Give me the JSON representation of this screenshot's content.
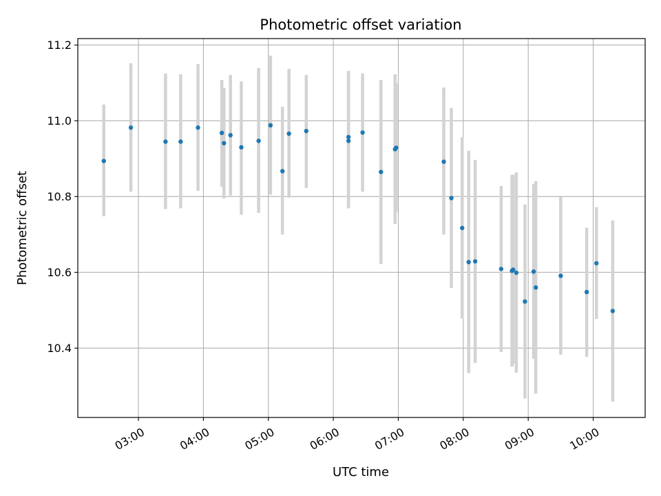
{
  "chart_data": {
    "type": "scatter",
    "title": "Photometric offset variation",
    "xlabel": "UTC time",
    "ylabel": "Photometric offset",
    "x_axis": {
      "kind": "time",
      "range": [
        "02:04",
        "10:48"
      ],
      "ticks": [
        "03:00",
        "04:00",
        "05:00",
        "06:00",
        "07:00",
        "08:00",
        "09:00",
        "10:00"
      ]
    },
    "y_axis": {
      "range": [
        10.217,
        11.217
      ],
      "ticks": [
        "10.4",
        "10.6",
        "10.8",
        "11.0",
        "11.2"
      ]
    },
    "grid": true,
    "colors": {
      "marker": "#1f77b4",
      "errorbar": "#d3d3d3",
      "grid": "#b0b0b0"
    },
    "points": [
      {
        "time": "02:28",
        "offset": 10.894,
        "low": 10.748,
        "high": 11.043
      },
      {
        "time": "02:53",
        "offset": 10.982,
        "low": 10.813,
        "high": 11.152
      },
      {
        "time": "03:25",
        "offset": 10.945,
        "low": 10.767,
        "high": 11.125
      },
      {
        "time": "03:39",
        "offset": 10.945,
        "low": 10.769,
        "high": 11.123
      },
      {
        "time": "03:55",
        "offset": 10.982,
        "low": 10.815,
        "high": 11.15
      },
      {
        "time": "04:17",
        "offset": 10.968,
        "low": 10.826,
        "high": 11.108
      },
      {
        "time": "04:19",
        "offset": 10.941,
        "low": 10.795,
        "high": 11.087
      },
      {
        "time": "04:25",
        "offset": 10.962,
        "low": 10.803,
        "high": 11.121
      },
      {
        "time": "04:35",
        "offset": 10.93,
        "low": 10.752,
        "high": 11.104
      },
      {
        "time": "04:51",
        "offset": 10.947,
        "low": 10.757,
        "high": 11.139
      },
      {
        "time": "05:02",
        "offset": 10.988,
        "low": 10.805,
        "high": 11.172
      },
      {
        "time": "05:13",
        "offset": 10.867,
        "low": 10.7,
        "high": 11.037
      },
      {
        "time": "05:19",
        "offset": 10.966,
        "low": 10.797,
        "high": 11.137
      },
      {
        "time": "05:35",
        "offset": 10.973,
        "low": 10.823,
        "high": 11.121
      },
      {
        "time": "06:14",
        "offset": 10.957,
        "low": 10.769,
        "high": 11.132
      },
      {
        "time": "06:14",
        "offset": 10.947,
        "low": 10.769,
        "high": 11.13
      },
      {
        "time": "06:27",
        "offset": 10.969,
        "low": 10.813,
        "high": 11.125
      },
      {
        "time": "06:44",
        "offset": 10.865,
        "low": 10.622,
        "high": 11.108
      },
      {
        "time": "06:57",
        "offset": 10.925,
        "low": 10.728,
        "high": 11.123
      },
      {
        "time": "06:58",
        "offset": 10.929,
        "low": 10.76,
        "high": 11.099
      },
      {
        "time": "07:42",
        "offset": 10.892,
        "low": 10.7,
        "high": 11.088
      },
      {
        "time": "07:49",
        "offset": 10.796,
        "low": 10.559,
        "high": 11.034
      },
      {
        "time": "07:59",
        "offset": 10.717,
        "low": 10.478,
        "high": 10.957
      },
      {
        "time": "08:05",
        "offset": 10.627,
        "low": 10.334,
        "high": 10.921
      },
      {
        "time": "08:11",
        "offset": 10.629,
        "low": 10.361,
        "high": 10.897
      },
      {
        "time": "08:35",
        "offset": 10.609,
        "low": 10.39,
        "high": 10.828
      },
      {
        "time": "08:45",
        "offset": 10.604,
        "low": 10.351,
        "high": 10.857
      },
      {
        "time": "08:46",
        "offset": 10.607,
        "low": 10.358,
        "high": 10.858
      },
      {
        "time": "08:49",
        "offset": 10.599,
        "low": 10.335,
        "high": 10.864
      },
      {
        "time": "08:57",
        "offset": 10.523,
        "low": 10.267,
        "high": 10.779
      },
      {
        "time": "09:05",
        "offset": 10.602,
        "low": 10.372,
        "high": 10.833
      },
      {
        "time": "09:07",
        "offset": 10.56,
        "low": 10.28,
        "high": 10.841
      },
      {
        "time": "09:30",
        "offset": 10.591,
        "low": 10.383,
        "high": 10.799
      },
      {
        "time": "09:54",
        "offset": 10.548,
        "low": 10.377,
        "high": 10.718
      },
      {
        "time": "10:03",
        "offset": 10.624,
        "low": 10.477,
        "high": 10.772
      },
      {
        "time": "10:18",
        "offset": 10.498,
        "low": 10.259,
        "high": 10.737
      }
    ]
  }
}
